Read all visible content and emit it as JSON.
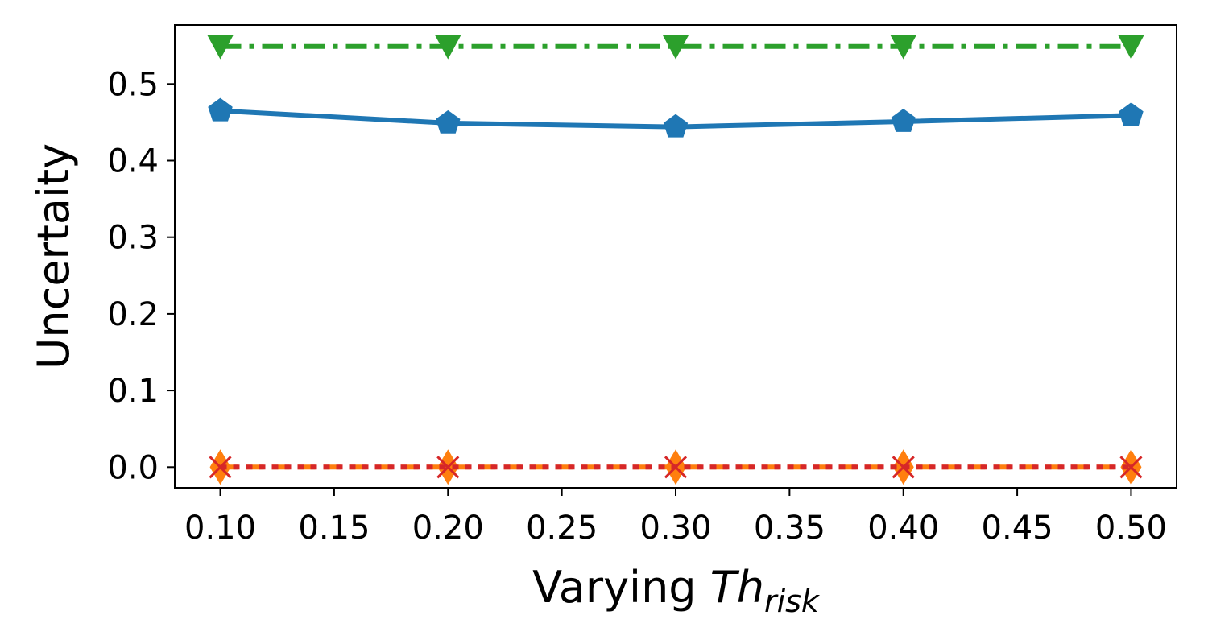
{
  "chart_data": {
    "type": "line",
    "title": "",
    "xlabel_main": "Varying ",
    "xlabel_symbol": "Th",
    "xlabel_subscript": "risk",
    "ylabel": "Uncertaity",
    "x": [
      0.1,
      0.2,
      0.3,
      0.4,
      0.5
    ],
    "xlim": [
      0.08,
      0.52
    ],
    "ylim": [
      -0.027,
      0.577
    ],
    "xticks": [
      0.1,
      0.15,
      0.2,
      0.25,
      0.3,
      0.35,
      0.4,
      0.45,
      0.5
    ],
    "xtick_labels": [
      "0.10",
      "0.15",
      "0.20",
      "0.25",
      "0.30",
      "0.35",
      "0.40",
      "0.45",
      "0.50"
    ],
    "yticks": [
      0.0,
      0.1,
      0.2,
      0.3,
      0.4,
      0.5
    ],
    "ytick_labels": [
      "0.0",
      "0.1",
      "0.2",
      "0.3",
      "0.4",
      "0.5"
    ],
    "grid": false,
    "series": [
      {
        "values": [
          0.549,
          0.549,
          0.549,
          0.549,
          0.549
        ],
        "color": "#2ca02c",
        "linestyle": "dashdot",
        "marker": "triangle-down"
      },
      {
        "values": [
          0.465,
          0.449,
          0.444,
          0.451,
          0.459
        ],
        "color": "#1f77b4",
        "linestyle": "solid",
        "marker": "pentagon"
      },
      {
        "values": [
          0.0,
          0.0,
          0.0,
          0.0,
          0.0
        ],
        "color": "#ff7f0e",
        "linestyle": "dashed",
        "marker": "thin-diamond"
      },
      {
        "values": [
          0.0,
          0.0,
          0.0,
          0.0,
          0.0
        ],
        "color": "#d62728",
        "linestyle": "dotted",
        "marker": "x"
      }
    ]
  }
}
